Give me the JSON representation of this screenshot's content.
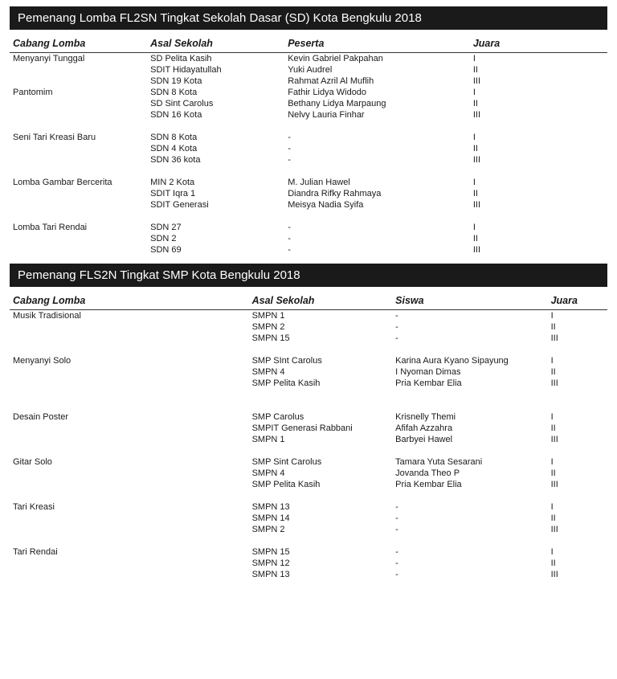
{
  "colors": {
    "header_bg": "#1a1a1a",
    "header_text": "#ffffff",
    "body_text": "#1a1a1a",
    "rule": "#333333",
    "page_bg": "#ffffff"
  },
  "typography": {
    "body_family": "Verdana, Geneva, sans-serif",
    "body_size_pt": 8,
    "header_size_pt": 11,
    "th_italic": true
  },
  "sections": [
    {
      "title": "Pemenang Lomba FL2SN Tingkat Sekolah Dasar (SD) Kota Bengkulu 2018",
      "columns": [
        {
          "label": "Cabang Lomba",
          "width": "23%"
        },
        {
          "label": "Asal Sekolah",
          "width": "23%"
        },
        {
          "label": "Peserta",
          "width": "31%"
        },
        {
          "label": "Juara",
          "width": "23%"
        }
      ],
      "groups": [
        {
          "gap_before": false,
          "rows": [
            [
              "Menyanyi Tunggal",
              "SD Pelita Kasih",
              "Kevin Gabriel Pakpahan",
              "I"
            ],
            [
              "",
              "SDIT Hidayatullah",
              "Yuki Audrel",
              "II"
            ],
            [
              "",
              "SDN 19 Kota",
              "Rahmat Azril Al Muflih",
              "III"
            ]
          ]
        },
        {
          "gap_before": false,
          "rows": [
            [
              "Pantomim",
              "SDN 8 Kota",
              "Fathir Lidya Widodo",
              "I"
            ],
            [
              "",
              "SD Sint Carolus",
              "Bethany Lidya Marpaung",
              "II"
            ],
            [
              "",
              "SDN 16 Kota",
              "Nelvy Lauria Finhar",
              "III"
            ]
          ]
        },
        {
          "gap_before": true,
          "rows": [
            [
              "Seni Tari Kreasi Baru",
              "SDN 8 Kota",
              "-",
              "I"
            ],
            [
              "",
              "SDN 4 Kota",
              "-",
              "II"
            ],
            [
              "",
              "SDN 36 kota",
              "-",
              "III"
            ]
          ]
        },
        {
          "gap_before": true,
          "rows": [
            [
              "Lomba Gambar Bercerita",
              "MIN 2 Kota",
              "M. Julian Hawel",
              "I"
            ],
            [
              "",
              "SDIT Iqra 1",
              "Diandra Rifky Rahmaya",
              "II"
            ],
            [
              "",
              "SDIT Generasi",
              "Meisya Nadia Syifa",
              "III"
            ]
          ]
        },
        {
          "gap_before": true,
          "rows": [
            [
              "Lomba Tari Rendai",
              "SDN 27",
              "-",
              "I"
            ],
            [
              "",
              "SDN 2",
              "-",
              "II"
            ],
            [
              "",
              "SDN 69",
              "-",
              "III"
            ]
          ]
        }
      ]
    },
    {
      "title": "Pemenang FLS2N Tingkat SMP Kota Bengkulu 2018",
      "columns": [
        {
          "label": "Cabang Lomba",
          "width": "40%"
        },
        {
          "label": "Asal Sekolah",
          "width": "24%"
        },
        {
          "label": "Siswa",
          "width": "26%"
        },
        {
          "label": "Juara",
          "width": "10%"
        }
      ],
      "groups": [
        {
          "gap_before": false,
          "rows": [
            [
              "Musik Tradisional",
              "SMPN 1",
              "-",
              "I"
            ],
            [
              "",
              "SMPN 2",
              "-",
              "II"
            ],
            [
              "",
              "SMPN 15",
              "-",
              "III"
            ]
          ]
        },
        {
          "gap_before": true,
          "rows": [
            [
              "Menyanyi Solo",
              "SMP SInt Carolus",
              "Karina Aura Kyano Sipayung",
              "I"
            ],
            [
              "",
              "SMPN 4",
              "I Nyoman Dimas",
              "II"
            ],
            [
              "",
              "SMP Pelita Kasih",
              "Pria Kembar Elia",
              "III"
            ]
          ]
        },
        {
          "gap_before": true,
          "extra_gap": true,
          "rows": [
            [
              "Desain Poster",
              "SMP Carolus",
              "Krisnelly Themi",
              "I"
            ],
            [
              "",
              "SMPIT Generasi Rabbani",
              "Afifah Azzahra",
              "II"
            ],
            [
              "",
              "SMPN 1",
              "Barbyei Hawel",
              "III"
            ]
          ]
        },
        {
          "gap_before": true,
          "rows": [
            [
              "Gitar Solo",
              "SMP Sint Carolus",
              "Tamara Yuta Sesarani",
              "I"
            ],
            [
              "",
              "SMPN 4",
              "Jovanda Theo P",
              "II"
            ],
            [
              "",
              "SMP Pelita Kasih",
              "Pria Kembar Elia",
              "III"
            ]
          ]
        },
        {
          "gap_before": true,
          "rows": [
            [
              "Tari Kreasi",
              "SMPN 13",
              "-",
              "I"
            ],
            [
              "",
              "SMPN 14",
              "-",
              "II"
            ],
            [
              "",
              "SMPN 2",
              "-",
              "III"
            ]
          ]
        },
        {
          "gap_before": true,
          "rows": [
            [
              "Tari Rendai",
              "SMPN 15",
              "-",
              "I"
            ],
            [
              "",
              "SMPN 12",
              "-",
              "II"
            ],
            [
              "",
              "SMPN 13",
              "-",
              "III"
            ]
          ]
        }
      ]
    }
  ]
}
